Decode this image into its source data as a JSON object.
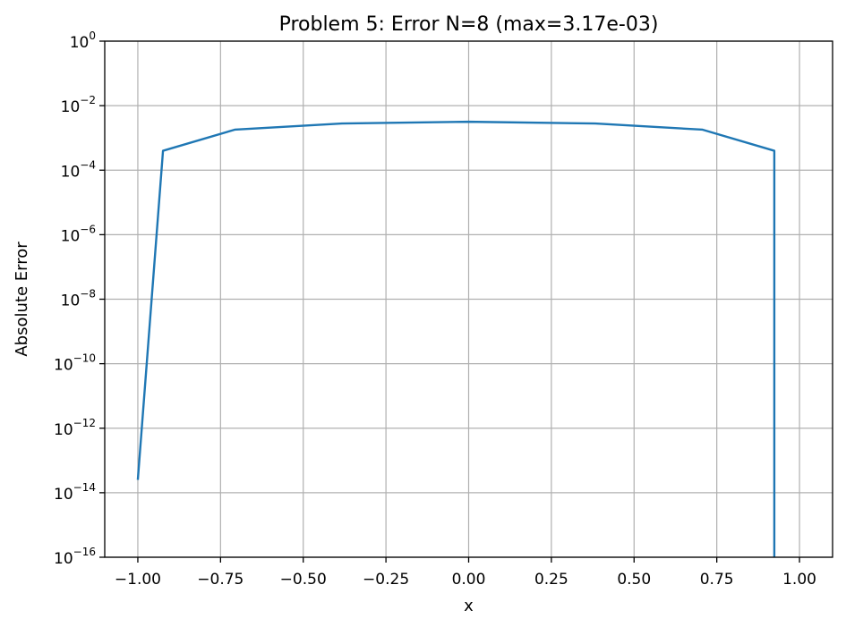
{
  "chart_data": {
    "type": "line",
    "title": "Problem 5: Error N=8 (max=3.17e-03)",
    "xlabel": "x",
    "ylabel": "Absolute Error",
    "xlim": [
      -1.1,
      1.1
    ],
    "ylim": [
      1e-16,
      1
    ],
    "yscale": "log",
    "grid": true,
    "x_ticks": [
      -1.0,
      -0.75,
      -0.5,
      -0.25,
      0.0,
      0.25,
      0.5,
      0.75,
      1.0
    ],
    "x_tick_labels": [
      "−1.00",
      "−0.75",
      "−0.50",
      "−0.25",
      "0.00",
      "0.25",
      "0.50",
      "0.75",
      "1.00"
    ],
    "y_ticks": [
      1e-16,
      1e-14,
      1e-12,
      1e-10,
      1e-08,
      1e-06,
      0.0001,
      0.01,
      1
    ],
    "y_tick_labels": [
      {
        "base": "10",
        "exp": "−16"
      },
      {
        "base": "10",
        "exp": "−14"
      },
      {
        "base": "10",
        "exp": "−12"
      },
      {
        "base": "10",
        "exp": "−10"
      },
      {
        "base": "10",
        "exp": "−8"
      },
      {
        "base": "10",
        "exp": "−6"
      },
      {
        "base": "10",
        "exp": "−4"
      },
      {
        "base": "10",
        "exp": "−2"
      },
      {
        "base": "10",
        "exp": "0"
      }
    ],
    "series": [
      {
        "color": "#1f77b4",
        "x": [
          -1.0,
          -0.9239,
          -0.7071,
          -0.3827,
          0.0,
          0.3827,
          0.7071,
          0.9239,
          0.9239
        ],
        "y": [
          2.5e-14,
          0.0004,
          0.0018,
          0.0028,
          0.00317,
          0.0028,
          0.0018,
          0.0004,
          1e-16
        ]
      }
    ]
  }
}
